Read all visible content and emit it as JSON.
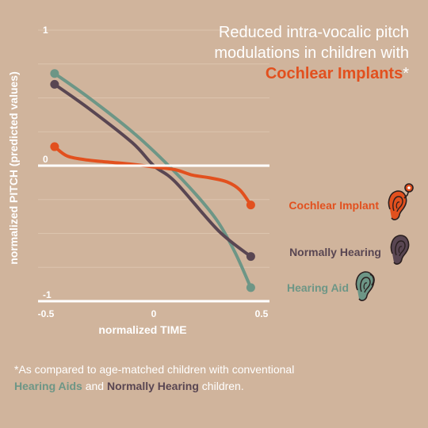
{
  "title": {
    "line1": "Reduced intra-vocalic pitch",
    "line2": "modulations in children with",
    "highlight": "Cochlear Implants",
    "asterisk": "*"
  },
  "footnote": {
    "prefix": "*As compared to age-matched children with conventional",
    "hearing_aids": "Hearing Aids",
    "and": " and ",
    "normally_hearing": "Normally Hearing",
    "suffix": " children."
  },
  "colors": {
    "background": "#d0b49c",
    "cochlear_implant": "#e2501e",
    "normally_hearing": "#594652",
    "hearing_aid": "#6d9686",
    "axis": "#ffffff"
  },
  "chart_data": {
    "type": "line",
    "xlabel": "normalized TIME",
    "ylabel": "normalized PITCH (predicted values)",
    "xlim": [
      -0.5,
      0.5
    ],
    "ylim": [
      -1,
      1
    ],
    "xticks": [
      "-0.5",
      "0",
      "0.5"
    ],
    "yticks": [
      "1",
      "0",
      "-1"
    ],
    "series": [
      {
        "name": "Cochlear Implant",
        "color": "#e2501e",
        "icon": "cochlear-implant-ear-icon",
        "x": [
          -0.46,
          -0.4,
          -0.3,
          -0.2,
          -0.1,
          0.0,
          0.1,
          0.18,
          0.26,
          0.34,
          0.4,
          0.45
        ],
        "y": [
          0.14,
          0.07,
          0.04,
          0.025,
          0.01,
          -0.01,
          -0.03,
          -0.07,
          -0.09,
          -0.12,
          -0.18,
          -0.29
        ]
      },
      {
        "name": "Normally Hearing",
        "color": "#594652",
        "icon": "normally-hearing-ear-icon",
        "x": [
          -0.46,
          -0.3,
          -0.1,
          0.0,
          0.1,
          0.3,
          0.45
        ],
        "y": [
          0.6,
          0.42,
          0.17,
          0.0,
          -0.12,
          -0.48,
          -0.67
        ]
      },
      {
        "name": "Hearing Aid",
        "color": "#6d9686",
        "icon": "hearing-aid-ear-icon",
        "x": [
          -0.46,
          -0.3,
          -0.1,
          0.05,
          0.2,
          0.3,
          0.38,
          0.45
        ],
        "y": [
          0.68,
          0.5,
          0.25,
          0.03,
          -0.22,
          -0.42,
          -0.65,
          -0.9
        ]
      }
    ]
  }
}
